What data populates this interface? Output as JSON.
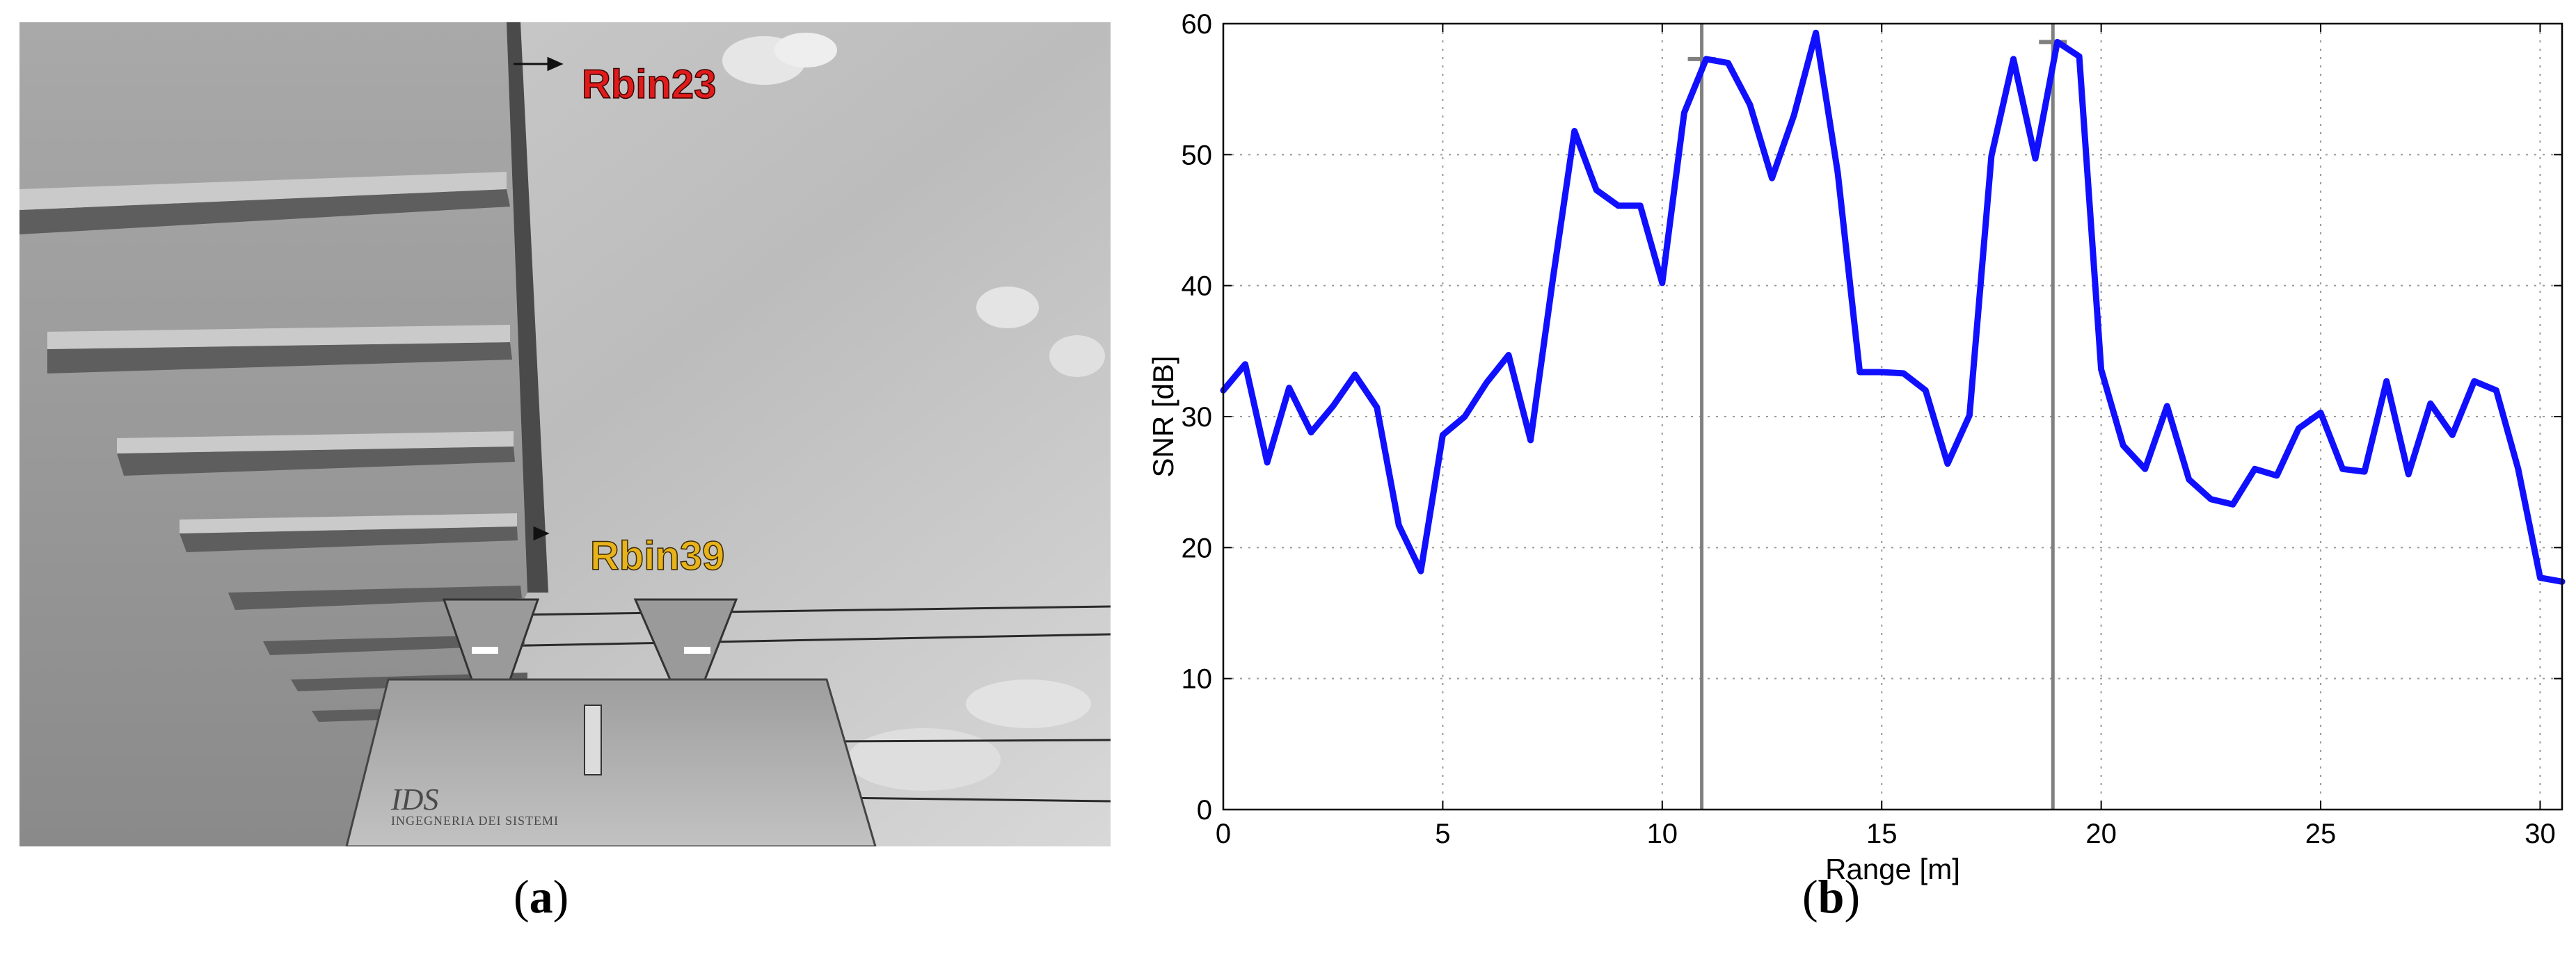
{
  "captions": {
    "a": {
      "letter": "a"
    },
    "b": {
      "letter": "b"
    }
  },
  "photo": {
    "labels": {
      "rbin23": "Rbin23",
      "rbin39": "Rbin39"
    },
    "device": {
      "brand": "IDS",
      "subtitle": "INGEGNERIA DEI SISTEMI"
    },
    "colors": {
      "rbin23": "#e01b1b",
      "rbin39": "#e8b21a"
    }
  },
  "chart_data": {
    "type": "line",
    "xlabel": "Range [m]",
    "ylabel": "SNR [dB]",
    "xlim": [
      0,
      30.5
    ],
    "ylim": [
      0,
      60
    ],
    "xticks": [
      0,
      5,
      10,
      15,
      20,
      25,
      30
    ],
    "yticks": [
      0,
      10,
      20,
      30,
      40,
      50,
      60
    ],
    "grid": true,
    "line_color": "#1010ff",
    "markers": [
      10.9,
      18.9
    ],
    "marker_color": "#808080",
    "series": [
      {
        "x": [
          0,
          0.5,
          1.0,
          1.5,
          2.0,
          2.5,
          3.0,
          3.5,
          4.0,
          4.5,
          5.0,
          5.5,
          6.0,
          6.5,
          7.0,
          7.5,
          8.0,
          8.5,
          9.0,
          9.5,
          10.0,
          10.5,
          11.0,
          11.5,
          12.0,
          12.5,
          13.0,
          13.5,
          14.0,
          14.5,
          15.0,
          15.5,
          16.0,
          16.5,
          17.0,
          17.5,
          18.0,
          18.5,
          19.0,
          19.5,
          20.0,
          20.5,
          21.0,
          21.5,
          22.0,
          22.5,
          23.0,
          23.5,
          24.0,
          24.5,
          25.0,
          25.5,
          26.0,
          26.5,
          27.0,
          27.5,
          28.0,
          28.5,
          29.0,
          29.5,
          30.0,
          30.5
        ],
        "values": [
          32,
          34,
          26.5,
          32.2,
          28.8,
          30.8,
          33.2,
          30.7,
          21.7,
          18.2,
          28.6,
          30.0,
          32.6,
          34.7,
          28.2,
          40.3,
          51.8,
          47.3,
          46.1,
          46.1,
          40.2,
          53.2,
          57.3,
          57.0,
          53.8,
          48.2,
          53.0,
          59.3,
          48.6,
          33.4,
          33.4,
          33.3,
          32.0,
          26.4,
          30.1,
          49.9,
          57.3,
          49.7,
          58.6,
          57.5,
          33.6,
          27.8,
          26.0,
          30.8,
          25.2,
          23.7,
          23.3,
          26.0,
          25.5,
          29.1,
          30.3,
          26.0,
          25.8,
          32.7,
          25.6,
          31.0,
          28.6,
          32.7,
          32.0,
          26.0,
          17.7,
          17.4
        ]
      }
    ]
  }
}
